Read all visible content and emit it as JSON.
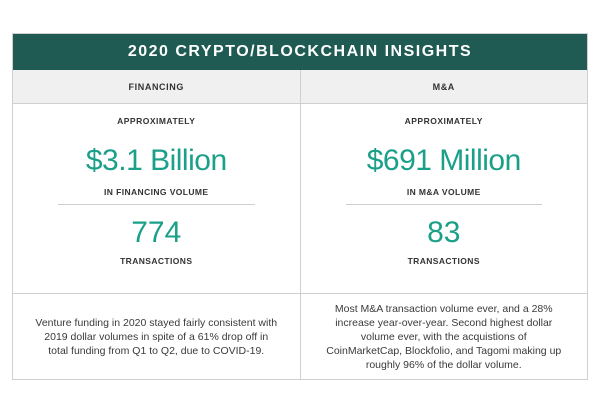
{
  "banner": {
    "title": "2020 CRYPTO/BLOCKCHAIN INSIGHTS"
  },
  "colors": {
    "banner_bg": "#1f5b52",
    "accent": "#1aa089",
    "header_bg": "#f0f0f0"
  },
  "columns": [
    {
      "header": "FINANCING",
      "approx": "APPROXIMATELY",
      "amount": "$3.1 Billion",
      "amount_label": "IN FINANCING VOLUME",
      "count": "774",
      "count_label": "TRANSACTIONS",
      "description": "Venture funding in 2020 stayed fairly consistent with 2019 dollar volumes in spite of a 61% drop off in total funding from Q1 to Q2, due to COVID-19."
    },
    {
      "header": "M&A",
      "approx": "APPROXIMATELY",
      "amount": "$691 Million",
      "amount_label": "IN M&A VOLUME",
      "count": "83",
      "count_label": "TRANSACTIONS",
      "description": "Most M&A transaction volume ever, and a 28% increase year-over-year. Second highest dollar volume ever, with the acquistions of CoinMarketCap, Blockfolio, and Tagomi making up roughly 96% of the dollar volume."
    }
  ]
}
